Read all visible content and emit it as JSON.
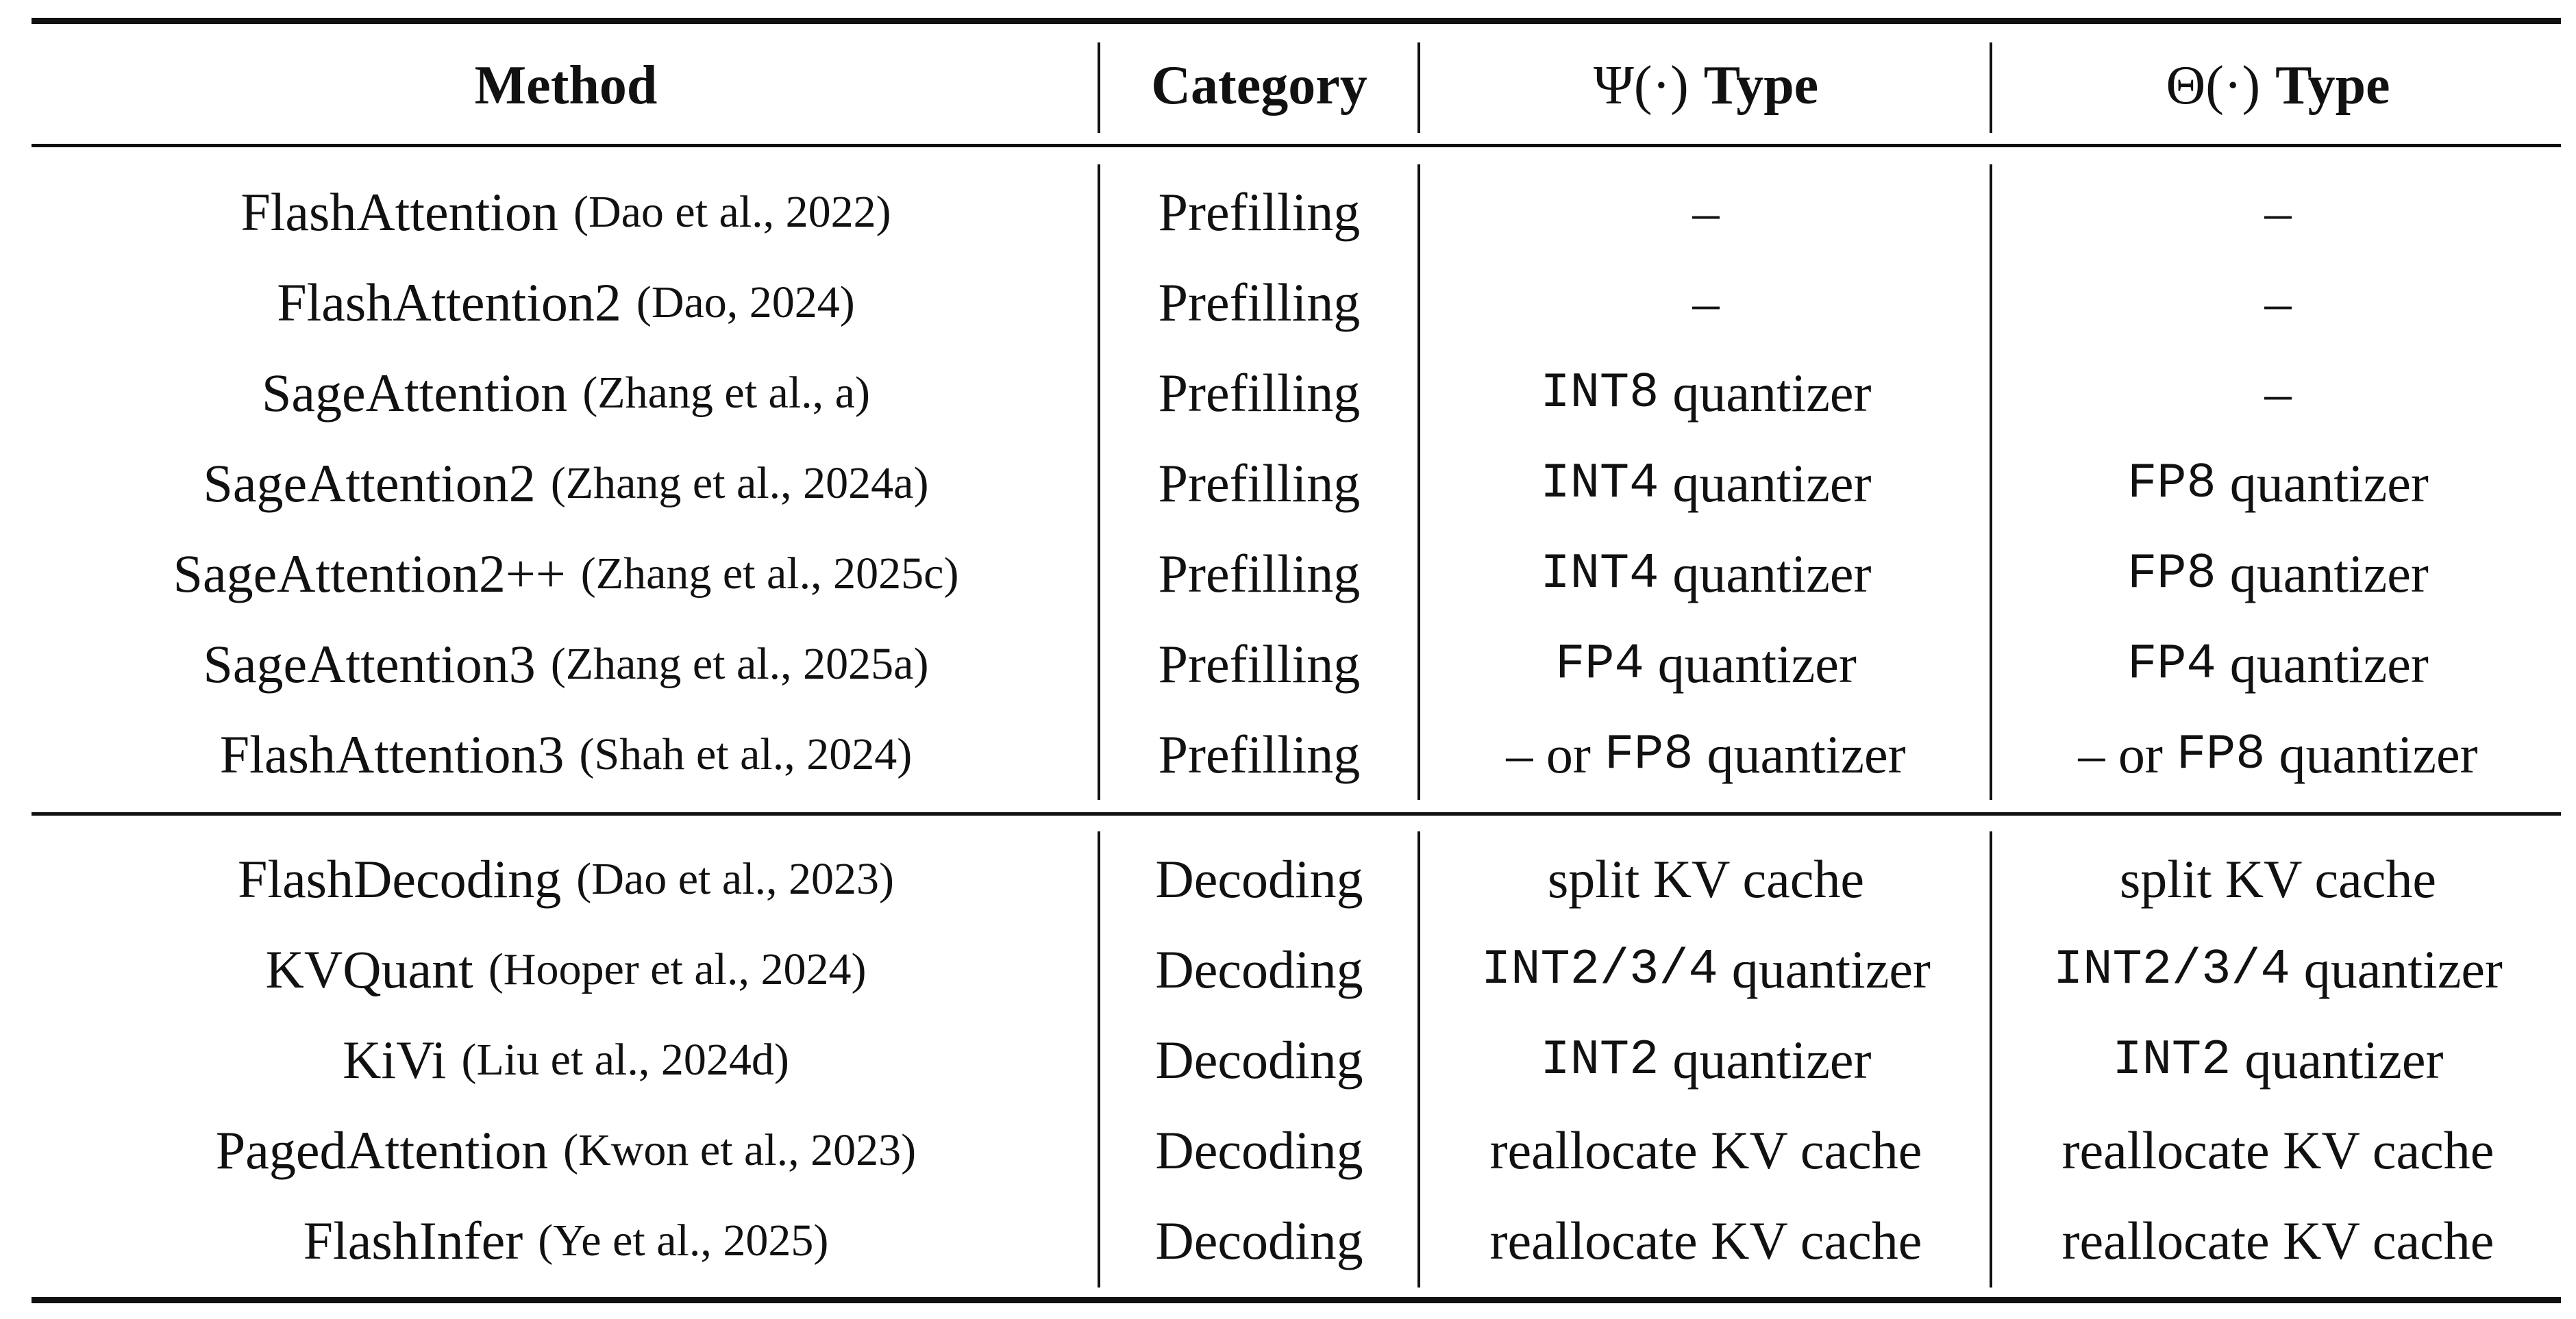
{
  "table": {
    "headers": {
      "method": "Method",
      "category": "Category",
      "psi_symbol": "Ψ(·)",
      "psi_type": "Type",
      "theta_symbol": "Θ(·)",
      "theta_type": "Type"
    },
    "prefilling_rows": [
      {
        "method": "FlashAttention",
        "citation": "(Dao et al., 2022)",
        "category": "Prefilling",
        "psi": {
          "kind": "dash",
          "text": "–"
        },
        "theta": {
          "kind": "dash",
          "text": "–"
        }
      },
      {
        "method": "FlashAttention2",
        "citation": "(Dao, 2024)",
        "category": "Prefilling",
        "psi": {
          "kind": "dash",
          "text": "–"
        },
        "theta": {
          "kind": "dash",
          "text": "–"
        }
      },
      {
        "method": "SageAttention",
        "citation": "(Zhang et al., a)",
        "category": "Prefilling",
        "psi": {
          "kind": "quant",
          "code": "INT8",
          "text": "quantizer"
        },
        "theta": {
          "kind": "dash",
          "text": "–"
        }
      },
      {
        "method": "SageAttention2",
        "citation": "(Zhang et al., 2024a)",
        "category": "Prefilling",
        "psi": {
          "kind": "quant",
          "code": "INT4",
          "text": "quantizer"
        },
        "theta": {
          "kind": "quant",
          "code": "FP8",
          "text": "quantizer"
        }
      },
      {
        "method": "SageAttention2++",
        "citation": "(Zhang et al., 2025c)",
        "category": "Prefilling",
        "psi": {
          "kind": "quant",
          "code": "INT4",
          "text": "quantizer"
        },
        "theta": {
          "kind": "quant",
          "code": "FP8",
          "text": "quantizer"
        }
      },
      {
        "method": "SageAttention3",
        "citation": "(Zhang et al., 2025a)",
        "category": "Prefilling",
        "psi": {
          "kind": "quant",
          "code": "FP4",
          "text": "quantizer"
        },
        "theta": {
          "kind": "quant",
          "code": "FP4",
          "text": "quantizer"
        }
      },
      {
        "method": "FlashAttention3",
        "citation": "(Shah et al., 2024)",
        "category": "Prefilling",
        "psi": {
          "kind": "or",
          "prefix": "– or",
          "code": "FP8",
          "text": "quantizer"
        },
        "theta": {
          "kind": "or",
          "prefix": "– or",
          "code": "FP8",
          "text": "quantizer"
        }
      }
    ],
    "decoding_rows": [
      {
        "method": "FlashDecoding",
        "citation": "(Dao et al., 2023)",
        "category": "Decoding",
        "psi": {
          "kind": "plain",
          "text": "split KV cache"
        },
        "theta": {
          "kind": "plain",
          "text": "split KV cache"
        }
      },
      {
        "method": "KVQuant",
        "citation": "(Hooper et al., 2024)",
        "category": "Decoding",
        "psi": {
          "kind": "quant",
          "code": "INT2/3/4",
          "text": "quantizer"
        },
        "theta": {
          "kind": "quant",
          "code": "INT2/3/4",
          "text": "quantizer"
        }
      },
      {
        "method": "KiVi",
        "citation": "(Liu et al., 2024d)",
        "category": "Decoding",
        "psi": {
          "kind": "quant",
          "code": "INT2",
          "text": "quantizer"
        },
        "theta": {
          "kind": "quant",
          "code": "INT2",
          "text": "quantizer"
        }
      },
      {
        "method": "PagedAttention",
        "citation": "(Kwon et al., 2023)",
        "category": "Decoding",
        "psi": {
          "kind": "plain",
          "text": "reallocate KV cache"
        },
        "theta": {
          "kind": "plain",
          "text": "reallocate KV cache"
        }
      },
      {
        "method": "FlashInfer",
        "citation": "(Ye et al., 2025)",
        "category": "Decoding",
        "psi": {
          "kind": "plain",
          "text": "reallocate KV cache"
        },
        "theta": {
          "kind": "plain",
          "text": "reallocate KV cache"
        }
      }
    ]
  }
}
